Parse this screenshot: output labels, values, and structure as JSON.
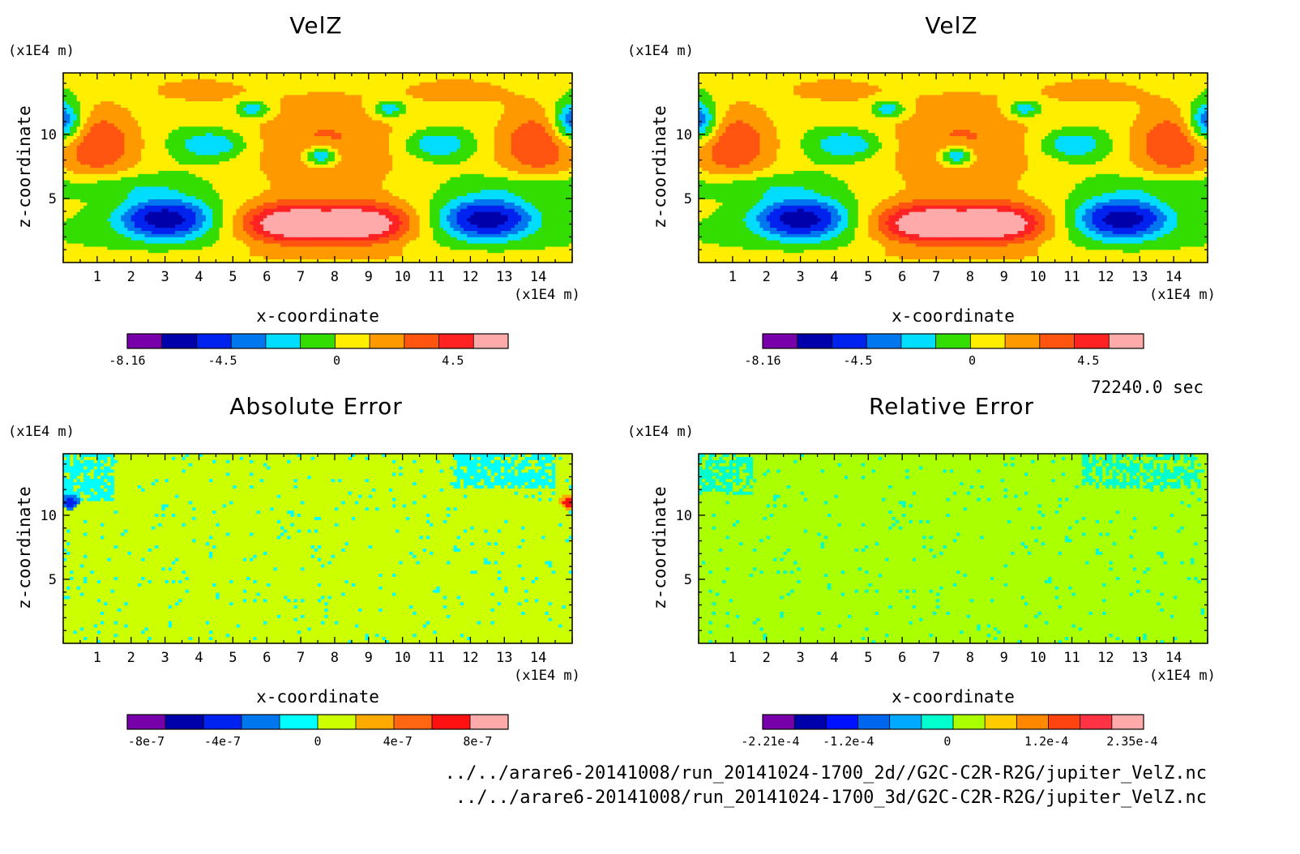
{
  "panels": [
    {
      "title": "VelZ",
      "field": "velz",
      "ylabel": "z-coordinate",
      "xlabel": "x-coordinate",
      "yunit": "(x1E4 m)",
      "xunit": "(x1E4 m)",
      "colorbar_colors": [
        "#7700aa",
        "#0000aa",
        "#0022ee",
        "#0077ee",
        "#00ddff",
        "#33dd00",
        "#ffee00",
        "#ff9900",
        "#ff5511",
        "#ff2222",
        "#ffaaaa"
      ],
      "colorbar_labels": [
        "-8.16",
        "-4.5",
        "0",
        "4.5"
      ]
    },
    {
      "title": "VelZ",
      "field": "velz",
      "ylabel": "z-coordinate",
      "xlabel": "x-coordinate",
      "yunit": "(x1E4 m)",
      "xunit": "(x1E4 m)",
      "colorbar_colors": [
        "#7700aa",
        "#0000aa",
        "#0022ee",
        "#0077ee",
        "#00ddff",
        "#33dd00",
        "#ffee00",
        "#ff9900",
        "#ff5511",
        "#ff2222",
        "#ffaaaa"
      ],
      "colorbar_labels": [
        "-8.16",
        "-4.5",
        "0",
        "4.5"
      ]
    },
    {
      "title": "Absolute Error",
      "field": "abserr",
      "ylabel": "z-coordinate",
      "xlabel": "x-coordinate",
      "yunit": "(x1E4 m)",
      "xunit": "(x1E4 m)",
      "colorbar_colors": [
        "#7700aa",
        "#0000aa",
        "#0022ee",
        "#0077ee",
        "#00ffff",
        "#ccff00",
        "#ffaa00",
        "#ff6611",
        "#ff1111",
        "#ffaaaa"
      ],
      "colorbar_labels": [
        "-8e-7",
        "-4e-7",
        "0",
        "4e-7",
        "8e-7"
      ]
    },
    {
      "title": "Relative Error",
      "field": "relerr",
      "ylabel": "z-coordinate",
      "xlabel": "x-coordinate",
      "yunit": "(x1E4 m)",
      "xunit": "(x1E4 m)",
      "colorbar_colors": [
        "#7700aa",
        "#0000aa",
        "#0011ff",
        "#0066ee",
        "#00aaff",
        "#00ffcc",
        "#aaff00",
        "#ffcc00",
        "#ff8800",
        "#ff4411",
        "#ff3344",
        "#ffaaaa"
      ],
      "colorbar_labels": [
        "-2.21e-4",
        "-1.2e-4",
        "0",
        "1.2e-4",
        "2.35e-4"
      ]
    }
  ],
  "time_label": "72240.0 sec",
  "footer": [
    "../../arare6-20141008/run_20141024-1700_2d//G2C-C2R-R2G/jupiter_VelZ.nc",
    "../../arare6-20141008/run_20141024-1700_3d/G2C-C2R-R2G/jupiter_VelZ.nc"
  ],
  "chart_data": [
    {
      "type": "heatmap",
      "title": "VelZ",
      "xlabel": "x-coordinate",
      "ylabel": "z-coordinate",
      "xunit": "(x1E4 m)",
      "yunit": "(x1E4 m)",
      "xlim": [
        0,
        15
      ],
      "ylim": [
        0,
        14.8
      ],
      "xticks": [
        1,
        2,
        3,
        4,
        5,
        6,
        7,
        8,
        9,
        10,
        11,
        12,
        13,
        14
      ],
      "yticks": [
        5,
        10
      ],
      "colorbar_ticks": [
        "-8.16",
        "-4.5",
        "0",
        "4.5"
      ],
      "range": [
        -8.16,
        7.5
      ]
    },
    {
      "type": "heatmap",
      "title": "VelZ",
      "xlabel": "x-coordinate",
      "ylabel": "z-coordinate",
      "xunit": "(x1E4 m)",
      "yunit": "(x1E4 m)",
      "xlim": [
        0,
        15
      ],
      "ylim": [
        0,
        14.8
      ],
      "xticks": [
        1,
        2,
        3,
        4,
        5,
        6,
        7,
        8,
        9,
        10,
        11,
        12,
        13,
        14
      ],
      "yticks": [
        5,
        10
      ],
      "colorbar_ticks": [
        "-8.16",
        "-4.5",
        "0",
        "4.5"
      ],
      "range": [
        -8.16,
        7.5
      ]
    },
    {
      "type": "heatmap",
      "title": "Absolute Error",
      "xlabel": "x-coordinate",
      "ylabel": "z-coordinate",
      "xunit": "(x1E4 m)",
      "yunit": "(x1E4 m)",
      "xlim": [
        0,
        15
      ],
      "ylim": [
        0,
        14.8
      ],
      "xticks": [
        1,
        2,
        3,
        4,
        5,
        6,
        7,
        8,
        9,
        10,
        11,
        12,
        13,
        14
      ],
      "yticks": [
        5,
        10
      ],
      "colorbar_ticks": [
        "-8e-7",
        "-4e-7",
        "0",
        "4e-7",
        "8e-7"
      ],
      "range": [
        -1e-06,
        1e-06
      ]
    },
    {
      "type": "heatmap",
      "title": "Relative Error",
      "xlabel": "x-coordinate",
      "ylabel": "z-coordinate",
      "xunit": "(x1E4 m)",
      "yunit": "(x1E4 m)",
      "xlim": [
        0,
        15
      ],
      "ylim": [
        0,
        14.8
      ],
      "xticks": [
        1,
        2,
        3,
        4,
        5,
        6,
        7,
        8,
        9,
        10,
        11,
        12,
        13,
        14
      ],
      "yticks": [
        5,
        10
      ],
      "colorbar_ticks": [
        "-2.21e-4",
        "-1.2e-4",
        "0",
        "1.2e-4",
        "2.35e-4"
      ],
      "range": [
        -0.000221,
        0.000235
      ]
    }
  ]
}
